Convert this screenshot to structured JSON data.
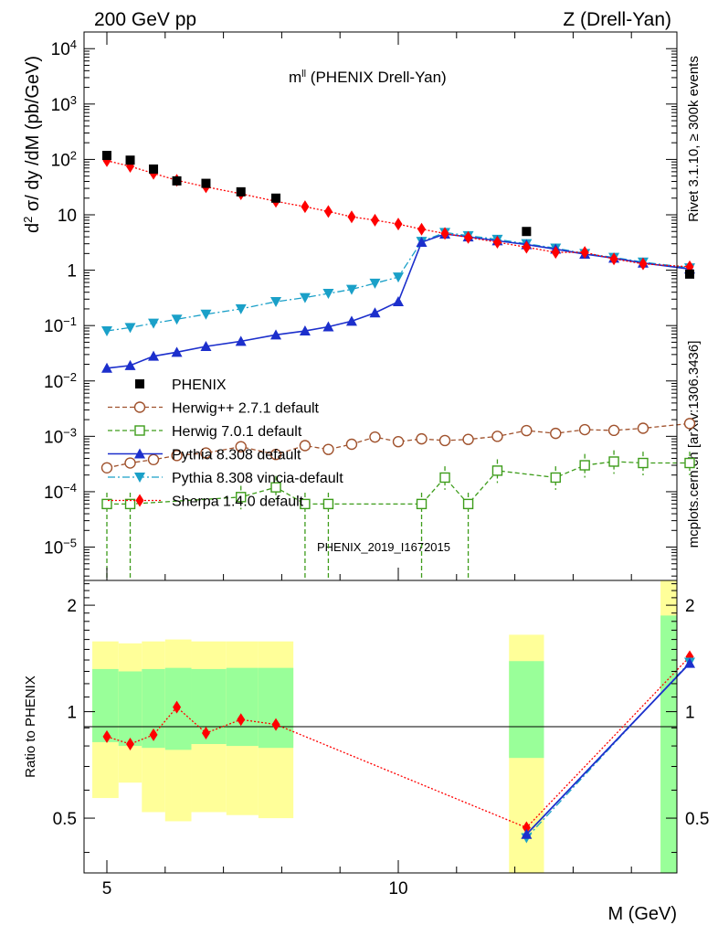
{
  "header": {
    "left": "200 GeV pp",
    "right": "Z (Drell-Yan)",
    "side_rivet": "Rivet 3.1.10, ≥ 300k events",
    "side_mcplots": "mcplots.cern.ch [arXiv:1306.3436]",
    "watermark": "PHENIX_2019_I1672015"
  },
  "colors": {
    "phenix": "#000000",
    "herwigpp": "#a0522d",
    "herwig7": "#3d9c1a",
    "pythia": "#1c2fcc",
    "vincia": "#1aa0c8",
    "sherpa": "#ff0000",
    "band_inner": "#99ff99",
    "band_outer": "#ffff99"
  },
  "chart_data": [
    {
      "type": "scatter",
      "scale": "log",
      "title": "m",
      "title_sup": "ll",
      "title_suffix": " (PHENIX Drell-Yan)",
      "ylabel_parts": {
        "d": "d",
        "two": "2",
        "rest": " σ/ dy /dM (pb/GeV)"
      },
      "xlabel": "M (GeV)",
      "ylim": [
        2.5e-06,
        20000.0
      ],
      "xlim": [
        4.7,
        15.3
      ],
      "y_ticks": [
        {
          "base": "10",
          "exp": "4"
        },
        {
          "base": "10",
          "exp": "3"
        },
        {
          "base": "10",
          "exp": "2"
        },
        {
          "base": "10",
          "exp": ""
        },
        {
          "base": "1",
          "exp": ""
        },
        {
          "base": "10",
          "exp": "−1"
        },
        {
          "base": "10",
          "exp": "−2"
        },
        {
          "base": "10",
          "exp": "−3"
        },
        {
          "base": "10",
          "exp": "−4"
        },
        {
          "base": "10",
          "exp": "−5"
        }
      ],
      "y_tick_values": [
        10000,
        1000,
        100,
        10,
        1,
        0.1,
        0.01,
        0.001,
        0.0001,
        1e-05
      ],
      "legend": [
        {
          "key": "phenix",
          "label": "PHENIX"
        },
        {
          "key": "herwigpp",
          "label": "Herwig++ 2.7.1 default"
        },
        {
          "key": "herwig7",
          "label": "Herwig 7.0.1 default"
        },
        {
          "key": "pythia",
          "label": "Pythia 8.308 default"
        },
        {
          "key": "vincia",
          "label": "Pythia 8.308 vincia-default"
        },
        {
          "key": "sherpa",
          "label": "Sherpa 1.4.0 default"
        }
      ],
      "series": [
        {
          "name": "PHENIX",
          "key": "phenix",
          "x": [
            5.0,
            5.4,
            5.8,
            6.2,
            6.7,
            7.3,
            7.9,
            12.2,
            15.0
          ],
          "values": [
            118,
            97,
            67,
            41,
            37,
            26,
            20,
            5.0,
            0.85
          ]
        },
        {
          "name": "Herwig++ 2.7.1 default",
          "key": "herwigpp",
          "x": [
            5.0,
            5.4,
            5.8,
            6.2,
            6.7,
            7.3,
            7.9,
            8.4,
            8.8,
            9.2,
            9.6,
            10.0,
            10.4,
            10.8,
            11.2,
            11.7,
            12.2,
            12.7,
            13.2,
            13.7,
            14.2,
            15.0
          ],
          "values": [
            0.00027,
            0.00033,
            0.00038,
            0.00045,
            0.0005,
            0.00065,
            0.00047,
            0.00068,
            0.00058,
            0.00072,
            0.00097,
            0.0008,
            0.0009,
            0.00084,
            0.00088,
            0.001,
            0.00127,
            0.00113,
            0.00132,
            0.00128,
            0.0014,
            0.0017
          ]
        },
        {
          "name": "Herwig 7.0.1 default",
          "key": "herwig7",
          "x": [
            5.0,
            5.4,
            7.3,
            7.9,
            8.4,
            8.8,
            10.4,
            10.8,
            11.2,
            11.7,
            12.7,
            13.2,
            13.7,
            14.2,
            15.0
          ],
          "values": [
            6e-05,
            6e-05,
            8e-05,
            0.00012,
            6e-05,
            6e-05,
            6e-05,
            0.00018,
            6e-05,
            0.00024,
            0.00018,
            0.0003,
            0.00035,
            0.00033,
            0.00033
          ]
        },
        {
          "name": "Pythia 8.308 default",
          "key": "pythia",
          "x": [
            5.0,
            5.4,
            5.8,
            6.2,
            6.7,
            7.3,
            7.9,
            8.4,
            8.8,
            9.2,
            9.6,
            10.0,
            10.4,
            10.8,
            11.2,
            11.7,
            12.2,
            12.7,
            13.2,
            13.7,
            14.2,
            15.0
          ],
          "values": [
            0.017,
            0.019,
            0.028,
            0.033,
            0.042,
            0.052,
            0.068,
            0.08,
            0.095,
            0.12,
            0.17,
            0.27,
            3.2,
            4.5,
            4.0,
            3.4,
            2.9,
            2.4,
            1.95,
            1.65,
            1.35,
            1.05
          ]
        },
        {
          "name": "Pythia 8.308 vincia-default",
          "key": "vincia",
          "x": [
            5.0,
            5.4,
            5.8,
            6.2,
            6.7,
            7.3,
            7.9,
            8.4,
            8.8,
            9.2,
            9.6,
            10.0,
            10.4,
            10.8,
            11.2,
            11.7,
            12.2,
            12.7,
            13.2,
            13.7,
            14.2,
            15.0
          ],
          "values": [
            0.08,
            0.092,
            0.11,
            0.13,
            0.16,
            0.2,
            0.27,
            0.32,
            0.38,
            0.45,
            0.58,
            0.75,
            3.3,
            4.8,
            4.2,
            3.6,
            3.0,
            2.5,
            2.0,
            1.7,
            1.4,
            1.1
          ]
        },
        {
          "name": "Sherpa 1.4.0 default",
          "key": "sherpa",
          "x": [
            5.0,
            5.4,
            5.8,
            6.2,
            6.7,
            7.3,
            7.9,
            8.4,
            8.8,
            9.2,
            9.6,
            10.0,
            10.4,
            10.8,
            11.2,
            11.7,
            12.2,
            12.7,
            13.2,
            13.7,
            14.2,
            15.0
          ],
          "values": [
            95,
            75,
            56,
            42,
            32,
            24,
            17.5,
            14,
            11.5,
            9.2,
            8.0,
            6.8,
            5.5,
            4.6,
            3.9,
            3.2,
            2.6,
            2.1,
            2.1,
            1.6,
            1.3,
            1.15
          ]
        }
      ]
    },
    {
      "type": "line",
      "ylabel": "Ratio to PHENIX",
      "xlabel": "M (GeV)",
      "ylim": [
        0.35,
        2.35
      ],
      "y_ticks": [
        "0.5",
        "1",
        "2"
      ],
      "y_tick_values": [
        0.5,
        1,
        2
      ],
      "x_ticks": [
        "5",
        "10"
      ],
      "x_tick_values": [
        5,
        10
      ],
      "bands": [
        {
          "x0": 4.75,
          "x1": 5.2,
          "inner": [
            0.82,
            1.32
          ],
          "outer": [
            0.57,
            1.58
          ]
        },
        {
          "x0": 5.2,
          "x1": 5.6,
          "inner": [
            0.8,
            1.3
          ],
          "outer": [
            0.63,
            1.56
          ]
        },
        {
          "x0": 5.6,
          "x1": 6.0,
          "inner": [
            0.79,
            1.32
          ],
          "outer": [
            0.52,
            1.58
          ]
        },
        {
          "x0": 6.0,
          "x1": 6.45,
          "inner": [
            0.78,
            1.33
          ],
          "outer": [
            0.49,
            1.6
          ]
        },
        {
          "x0": 6.45,
          "x1": 7.05,
          "inner": [
            0.81,
            1.32
          ],
          "outer": [
            0.52,
            1.58
          ]
        },
        {
          "x0": 7.05,
          "x1": 7.6,
          "inner": [
            0.8,
            1.33
          ],
          "outer": [
            0.51,
            1.58
          ]
        },
        {
          "x0": 7.6,
          "x1": 8.2,
          "inner": [
            0.79,
            1.33
          ],
          "outer": [
            0.5,
            1.58
          ]
        },
        {
          "x0": 11.9,
          "x1": 12.5,
          "inner": [
            0.74,
            1.39
          ],
          "outer": [
            0.3,
            1.65
          ]
        },
        {
          "x0": 14.5,
          "x1": 15.5,
          "inner": [
            0.3,
            1.87
          ],
          "outer": [
            0.3,
            2.6
          ]
        }
      ],
      "series": [
        {
          "name": "Sherpa 1.4.0 default",
          "key": "sherpa",
          "x": [
            5.0,
            5.4,
            5.8,
            6.2,
            6.7,
            7.3,
            7.9,
            12.2,
            15.0
          ],
          "values": [
            0.85,
            0.81,
            0.86,
            1.03,
            0.87,
            0.95,
            0.92,
            0.47,
            1.43
          ]
        },
        {
          "name": "Pythia 8.308 vincia-default",
          "key": "vincia",
          "x": [
            12.2,
            15.0
          ],
          "values": [
            0.44,
            1.38
          ]
        },
        {
          "name": "Pythia 8.308 default",
          "key": "pythia",
          "x": [
            12.2,
            15.0
          ],
          "values": [
            0.45,
            1.37
          ]
        }
      ]
    }
  ]
}
